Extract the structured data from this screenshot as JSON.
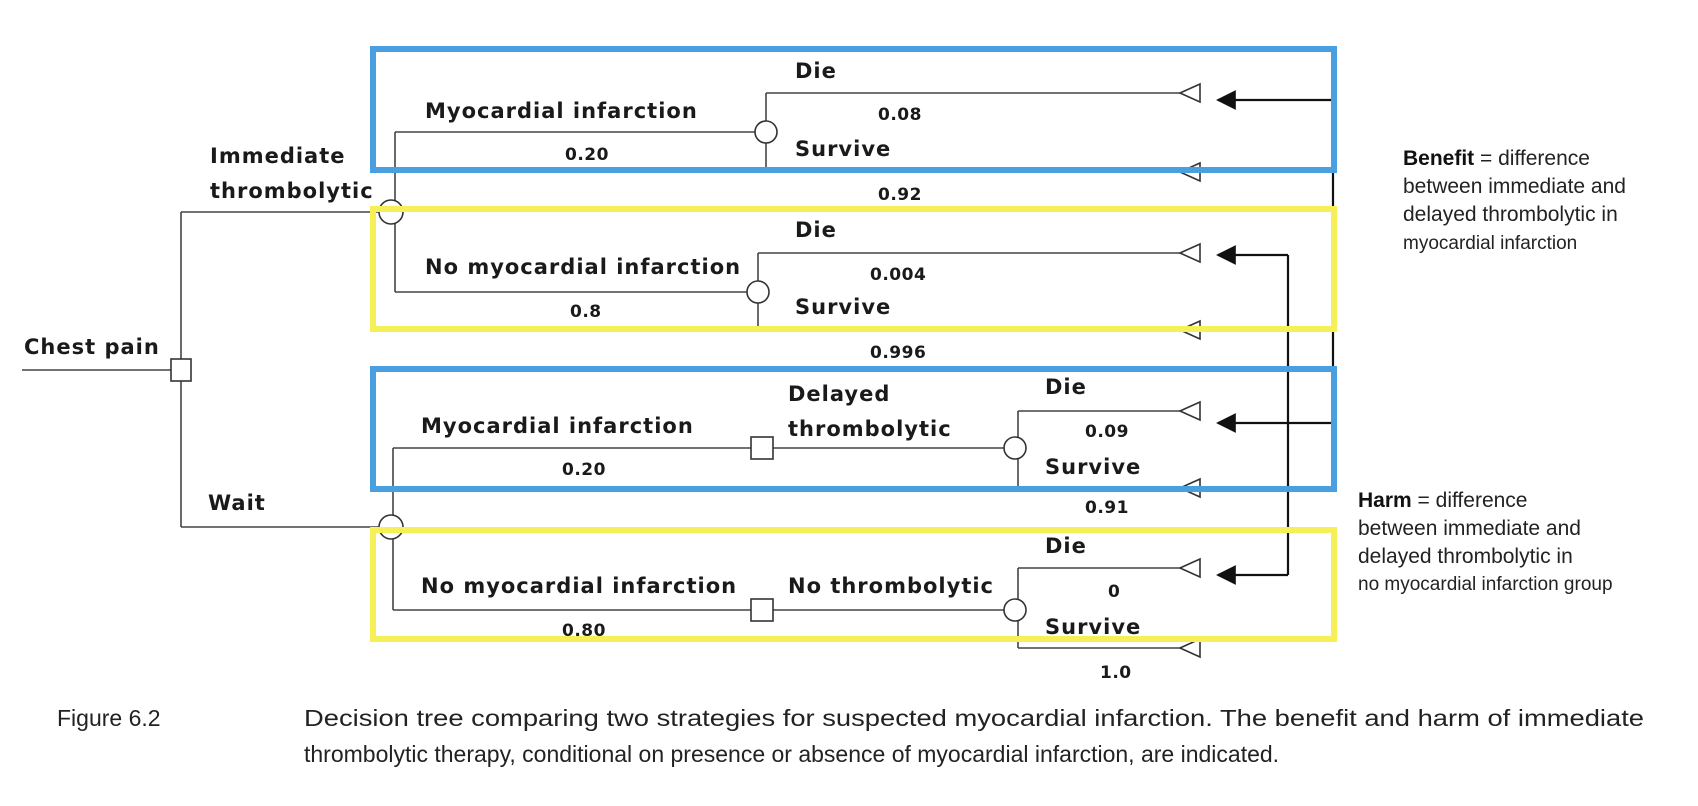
{
  "tree": {
    "root": "Chest pain",
    "strategy_immediate": [
      "Immediate",
      "thrombolytic"
    ],
    "strategy_wait": "Wait",
    "imm_mi": {
      "label": "Myocardial infarction",
      "prob": "0.20",
      "die": "Die",
      "die_p": "0.08",
      "survive": "Survive",
      "survive_p": "0.92"
    },
    "imm_nomi": {
      "label": "No myocardial infarction",
      "prob": "0.8",
      "die": "Die",
      "die_p": "0.004",
      "survive": "Survive",
      "survive_p": "0.996"
    },
    "wait_mi": {
      "label": "Myocardial infarction",
      "prob": "0.20",
      "decision": [
        "Delayed",
        "thrombolytic"
      ],
      "die": "Die",
      "die_p": "0.09",
      "survive": "Survive",
      "survive_p": "0.91"
    },
    "wait_nomi": {
      "label": "No myocardial infarction",
      "prob": "0.80",
      "decision": "No thrombolytic",
      "die": "Die",
      "die_p": "0",
      "survive": "Survive",
      "survive_p": "1.0"
    }
  },
  "annotations": {
    "benefit_bold": "Benefit",
    "benefit_rest": " = difference",
    "benefit_lines": [
      "between immediate and",
      "delayed thrombolytic in",
      "myocardial infarction"
    ],
    "harm_bold": "Harm",
    "harm_rest": " = difference",
    "harm_lines": [
      "between immediate and",
      "delayed thrombolytic in",
      "no myocardial infarction group"
    ]
  },
  "caption": {
    "figure": "Figure 6.2",
    "lines": [
      "Decision tree comparing two strategies for suspected myocardial infarction. The benefit and harm of immediate",
      "thrombolytic therapy, conditional on presence or absence of myocardial infarction, are indicated."
    ]
  },
  "colors": {
    "blue_box": "#4a9fe0",
    "yellow_box": "#f5f058",
    "ink": "#222222"
  }
}
